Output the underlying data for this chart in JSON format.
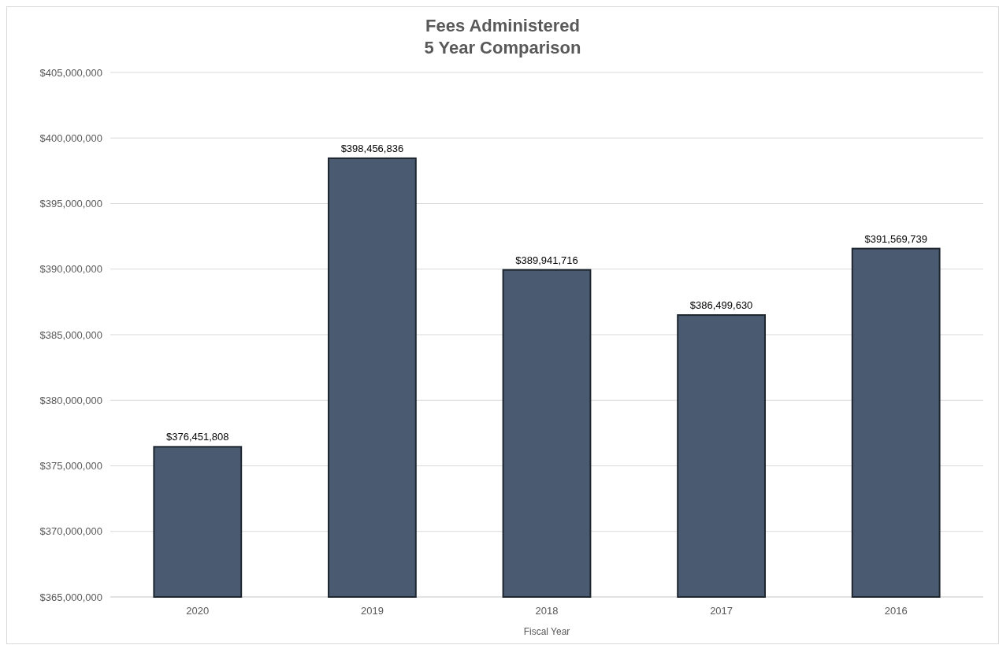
{
  "chart_data": {
    "type": "bar",
    "title": "Fees Administered",
    "subtitle": "5 Year Comparison",
    "xlabel": "Fiscal Year",
    "categories": [
      "2020",
      "2019",
      "2018",
      "2017",
      "2016"
    ],
    "values": [
      376451808,
      398456836,
      389941716,
      386499630,
      391569739
    ],
    "value_labels": [
      "$376,451,808",
      "$398,456,836",
      "$389,941,716",
      "$386,499,630",
      "$391,569,739"
    ],
    "color": "#4a5a70",
    "ylim": [
      365000000,
      405000000
    ],
    "yticks": [
      {
        "value": 365000000,
        "label": "$365,000,000"
      },
      {
        "value": 370000000,
        "label": "$370,000,000"
      },
      {
        "value": 375000000,
        "label": "$375,000,000"
      },
      {
        "value": 380000000,
        "label": "$380,000,000"
      },
      {
        "value": 385000000,
        "label": "$385,000,000"
      },
      {
        "value": 390000000,
        "label": "$390,000,000"
      },
      {
        "value": 395000000,
        "label": "$395,000,000"
      },
      {
        "value": 400000000,
        "label": "$400,000,000"
      },
      {
        "value": 405000000,
        "label": "$405,000,000"
      }
    ],
    "grid": "y"
  }
}
